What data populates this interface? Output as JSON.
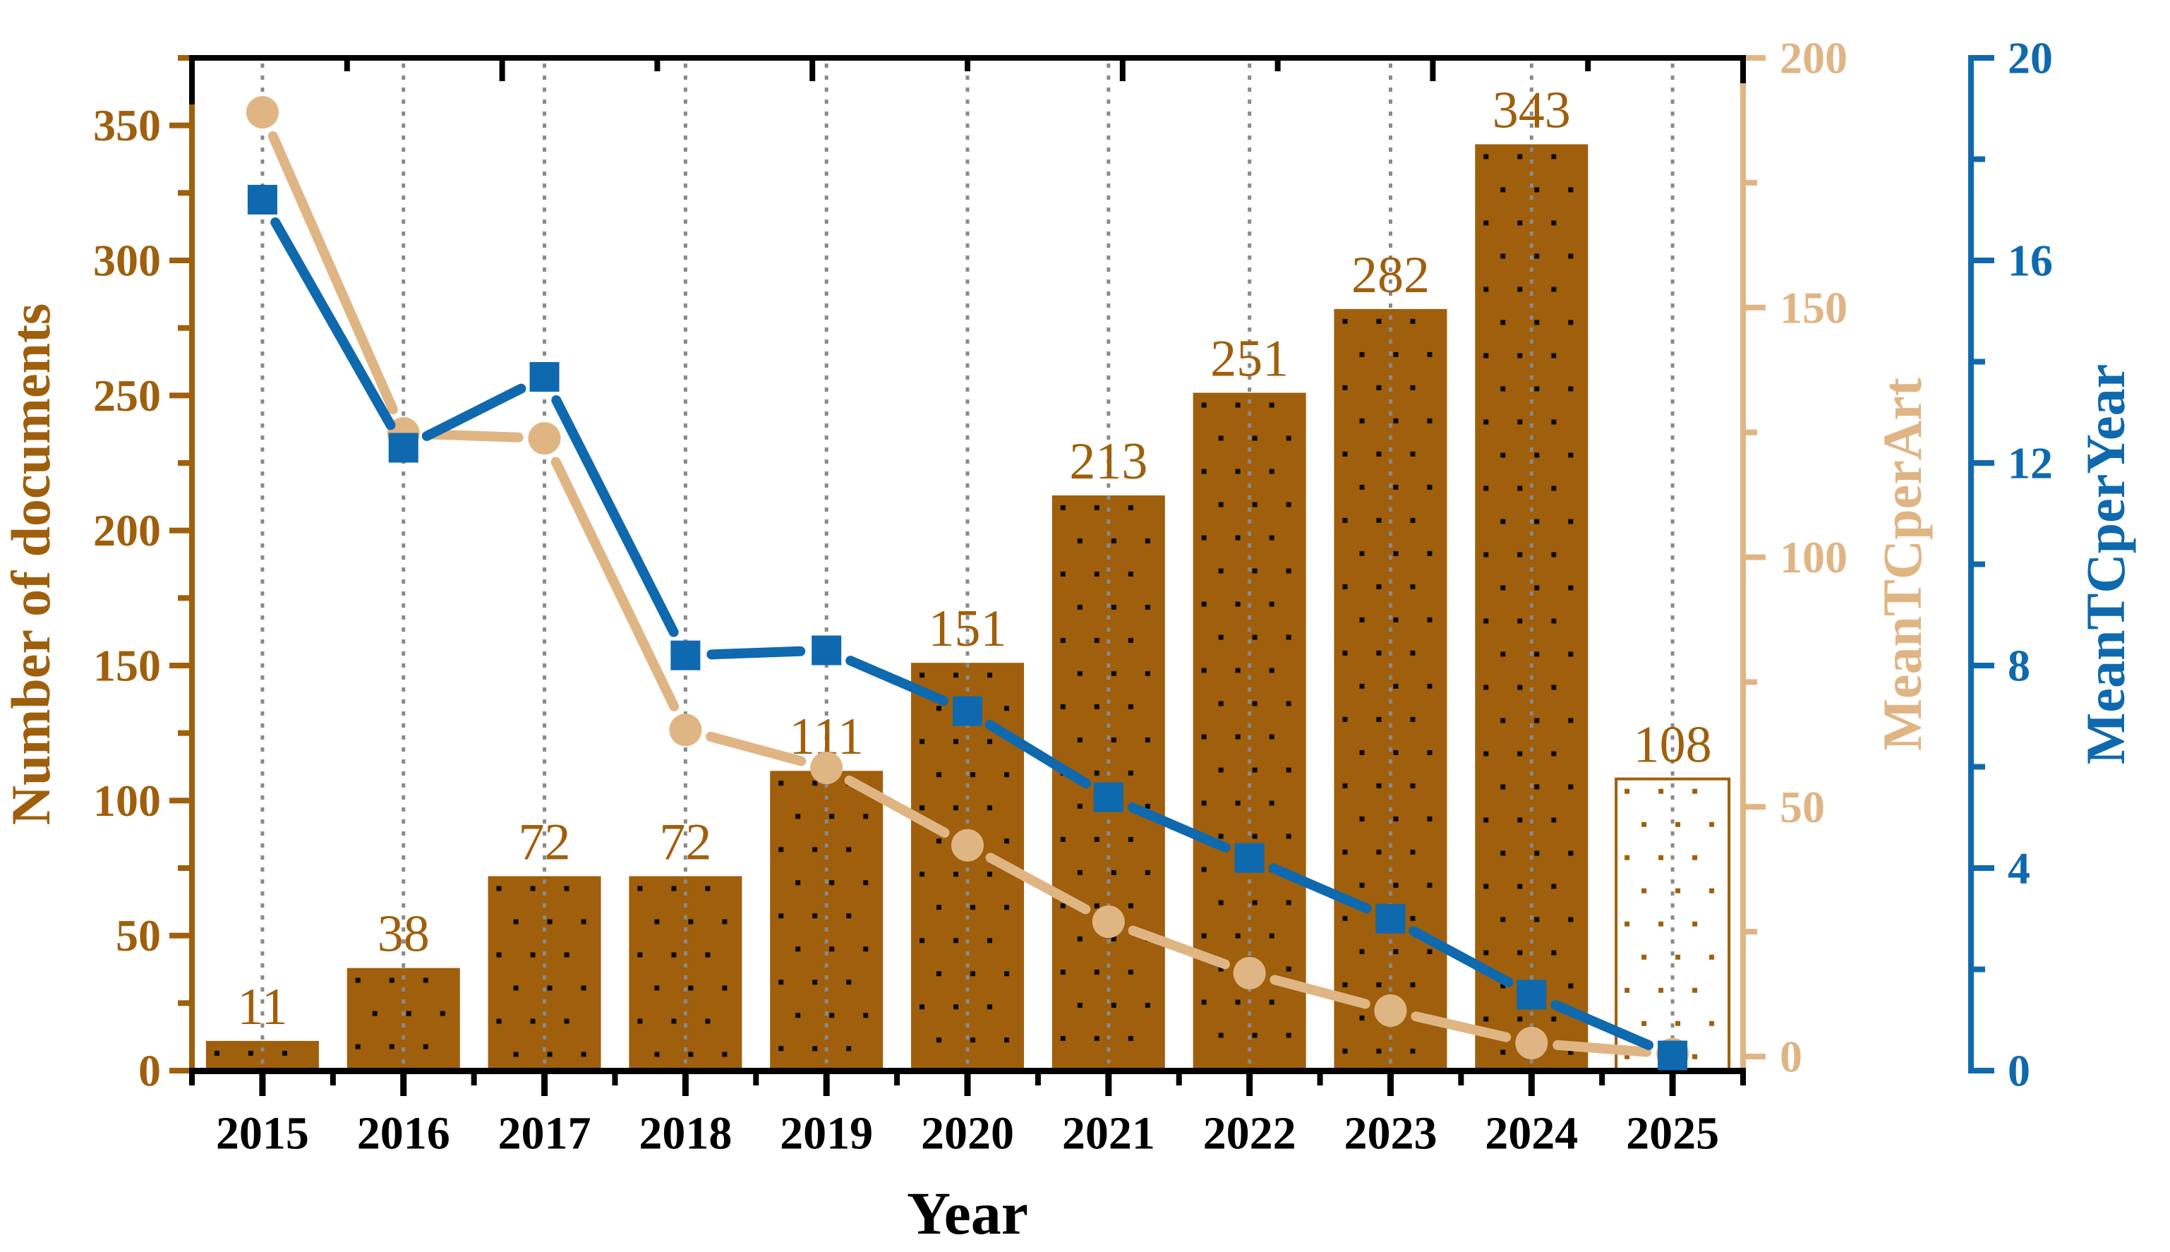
{
  "chart_data": {
    "type": "bar+line",
    "title": "",
    "categories": [
      "2015",
      "2016",
      "2017",
      "2018",
      "2019",
      "2020",
      "2021",
      "2022",
      "2023",
      "2024",
      "2025"
    ],
    "series": [
      {
        "name": "Number of documents",
        "type": "bar",
        "axis": "left",
        "values": [
          11,
          38,
          72,
          72,
          111,
          151,
          213,
          251,
          282,
          343,
          108
        ],
        "data_labels": [
          "11",
          "38",
          "72",
          "72",
          "111",
          "151",
          "213",
          "251",
          "282",
          "343",
          "108"
        ],
        "hollow_bars": [
          false,
          false,
          false,
          false,
          false,
          false,
          false,
          false,
          false,
          false,
          true
        ],
        "fill_pattern": "black-dots-on-brown"
      },
      {
        "name": "MeanTCperArt",
        "type": "line",
        "marker": "circle",
        "axis": "right_inner",
        "values": [
          189.1,
          124.8,
          123.8,
          65.4,
          57.8,
          42.3,
          27.0,
          16.7,
          9.2,
          2.7,
          0.5
        ]
      },
      {
        "name": "MeanTCperYear",
        "type": "line",
        "marker": "square",
        "axis": "right_outer",
        "values": [
          17.2,
          12.3,
          13.7,
          8.2,
          8.3,
          7.1,
          5.4,
          4.2,
          3.0,
          1.5,
          0.3
        ]
      }
    ],
    "axes": {
      "x": {
        "label": "Year",
        "tick_labels": [
          "2015",
          "2016",
          "2017",
          "2018",
          "2019",
          "2020",
          "2021",
          "2022",
          "2023",
          "2024",
          "2025"
        ],
        "minor_ticks_at_midpoints": true
      },
      "left": {
        "label": "Number of documents",
        "tick_labels": [
          "0",
          "50",
          "100",
          "150",
          "200",
          "250",
          "300",
          "350"
        ],
        "major_step": 50,
        "minor_step": 25,
        "range": [
          0,
          375
        ]
      },
      "right_inner": {
        "label": "MeanTCperArt",
        "tick_labels": [
          "0",
          "50",
          "100",
          "150",
          "200"
        ],
        "major_step": 50,
        "minor_step": 25,
        "range": [
          0,
          200
        ]
      },
      "right_outer": {
        "label": "MeanTCperYear",
        "tick_labels": [
          "0",
          "4",
          "8",
          "12",
          "16",
          "20"
        ],
        "major_step": 4,
        "minor_step": 2,
        "range": [
          0,
          20
        ]
      }
    },
    "gridlines": {
      "vertical_dotted_per_category": true
    },
    "legend_position": "none"
  },
  "colors": {
    "bar_brown": "#9F5F0C",
    "brown_text": "#9F5F0C",
    "tan": "#E0B584",
    "blue": "#0F69AE",
    "grid_gray": "#8A8A8A",
    "black": "#000000",
    "dot_black": "#0A0A0A",
    "background": "#FFFFFF"
  }
}
